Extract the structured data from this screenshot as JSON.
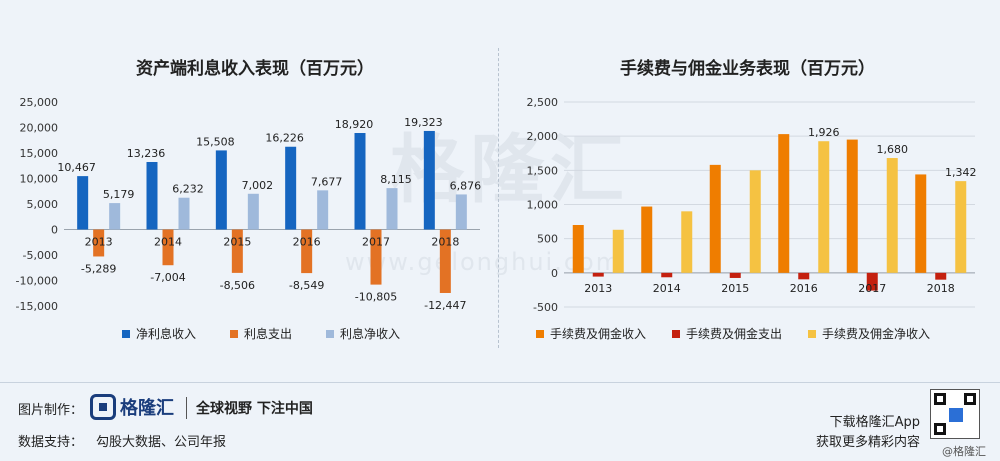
{
  "chart_data": [
    {
      "type": "bar",
      "title": "资产端利息收入表现（百万元）",
      "categories": [
        "2013",
        "2014",
        "2015",
        "2016",
        "2017",
        "2018"
      ],
      "series": [
        {
          "name": "净利息收入",
          "values": [
            10467,
            13236,
            15508,
            16226,
            18920,
            19323
          ],
          "labels": [
            "10,467",
            "13,236",
            "15,508",
            "16,226",
            "18,920",
            "19,323"
          ]
        },
        {
          "name": "利息支出",
          "values": [
            -5289,
            -7004,
            -8506,
            -8549,
            -10805,
            -12447
          ],
          "labels": [
            "-5,289",
            "-7,004",
            "-8,506",
            "-8,549",
            "-10,805",
            "-12,447"
          ]
        },
        {
          "name": "利息净收入",
          "values": [
            5179,
            6232,
            7002,
            7677,
            8115,
            6876
          ],
          "labels": [
            "5,179",
            "6,232",
            "7,002",
            "7,677",
            "8,115",
            "6,876"
          ]
        }
      ],
      "colors": [
        "#1565c0",
        "#e37224",
        "#9fb9db"
      ],
      "ylim": [
        -15000,
        25000
      ],
      "yticks": [
        25000,
        20000,
        15000,
        10000,
        5000,
        0,
        -5000,
        -10000,
        -15000
      ],
      "ytick_labels": [
        "25,000",
        "20,000",
        "15,000",
        "10,000",
        "5,000",
        "0",
        "-5,000",
        "-10,000",
        "-15,000"
      ],
      "grid": false,
      "legend_position": "bottom"
    },
    {
      "type": "bar",
      "title": "手续费与佣金业务表现（百万元）",
      "categories": [
        "2013",
        "2014",
        "2015",
        "2016",
        "2017",
        "2018"
      ],
      "series": [
        {
          "name": "手续费及佣金收入",
          "values": [
            700,
            970,
            1580,
            2030,
            1950,
            1440
          ]
        },
        {
          "name": "手续费及佣金支出",
          "values": [
            -55,
            -65,
            -75,
            -95,
            -260,
            -100
          ]
        },
        {
          "name": "手续费及佣金净收入",
          "values": [
            630,
            900,
            1500,
            1926,
            1680,
            1342
          ],
          "labels": [
            "",
            "",
            "",
            "1,926",
            "1,680",
            "1,342"
          ]
        }
      ],
      "colors": [
        "#ef7d00",
        "#c4200f",
        "#f5c242"
      ],
      "ylim": [
        -500,
        2500
      ],
      "yticks": [
        2500,
        2000,
        1500,
        1000,
        500,
        0,
        -500
      ],
      "ytick_labels": [
        "2,500",
        "2,000",
        "1,500",
        "1,000",
        "500",
        "0",
        "-500"
      ],
      "grid": true,
      "legend_position": "bottom"
    }
  ],
  "watermark": {
    "text": "格隆汇",
    "url": "www.gelonghui.com"
  },
  "footer": {
    "made_by_label": "图片制作：",
    "logo_text": "格隆汇",
    "slogan": "全球视野 下注中国",
    "source_label": "数据支持：",
    "source_text": "勾股大数据、公司年报",
    "promo_line1": "下载格隆汇App",
    "promo_line2": "获取更多精彩内容",
    "qr_caption": "@格隆汇"
  }
}
